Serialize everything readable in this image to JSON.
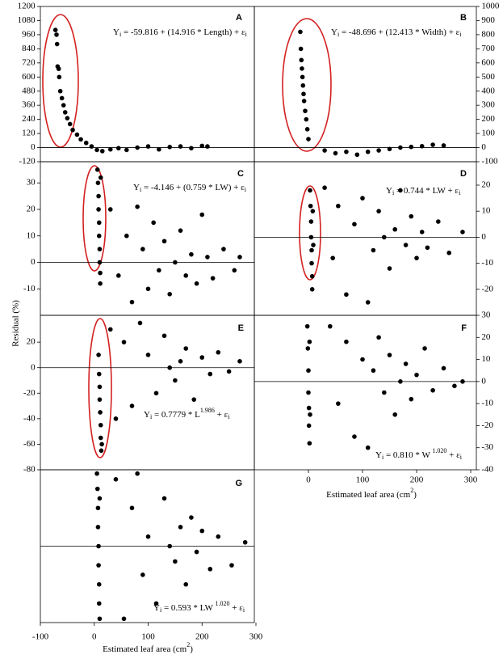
{
  "chart_data": [
    {
      "type": "scatter",
      "title": "A",
      "equation": [
        "Y",
        "i",
        " = -59.816 + (14.916 * Length) + ε",
        "i"
      ],
      "xlim": [
        -100,
        300
      ],
      "ylim": [
        -120,
        1200
      ],
      "yticks": [
        -120,
        0,
        120,
        240,
        360,
        480,
        600,
        720,
        840,
        960,
        1080,
        1200
      ],
      "x": [
        -72,
        -70,
        -69,
        -68,
        -66,
        -65,
        -63,
        -60,
        -57,
        -54,
        -50,
        -45,
        -40,
        -32,
        -25,
        -15,
        -5,
        5,
        15,
        30,
        45,
        60,
        80,
        100,
        120,
        140,
        160,
        180,
        200,
        210
      ],
      "values": [
        1000,
        960,
        880,
        690,
        670,
        600,
        480,
        420,
        360,
        300,
        250,
        200,
        150,
        110,
        70,
        40,
        10,
        -20,
        -30,
        -15,
        -5,
        -20,
        0,
        10,
        -15,
        5,
        10,
        -5,
        15,
        10
      ]
    },
    {
      "type": "scatter",
      "title": "B",
      "equation": [
        "Y",
        "i",
        " = -48.696 + (12.413 * Width) + ε",
        "i"
      ],
      "xlim": [
        -100,
        300
      ],
      "ylim": [
        -100,
        1000
      ],
      "yticks": [
        -100,
        0,
        100,
        200,
        300,
        400,
        500,
        600,
        700,
        800,
        900,
        1000
      ],
      "x": [
        -15,
        -14,
        -13,
        -12,
        -11,
        -10,
        -9,
        -8,
        -6,
        -4,
        -2,
        0,
        30,
        50,
        70,
        90,
        110,
        130,
        150,
        170,
        190,
        210,
        230,
        250
      ],
      "values": [
        820,
        700,
        620,
        560,
        500,
        440,
        380,
        330,
        260,
        200,
        130,
        60,
        -20,
        -40,
        -30,
        -50,
        -30,
        -20,
        -10,
        0,
        5,
        10,
        20,
        15
      ]
    },
    {
      "type": "scatter",
      "title": "C",
      "equation": [
        "Y",
        "i",
        " = -4.146 + (0.759 * LW) + ε",
        "i"
      ],
      "xlim": [
        -100,
        300
      ],
      "ylim": [
        -20,
        38
      ],
      "yticks": [
        -10,
        0,
        10,
        20,
        30
      ],
      "x": [
        6,
        7,
        8,
        8,
        9,
        9,
        10,
        10,
        11,
        11,
        12,
        30,
        45,
        60,
        70,
        80,
        90,
        100,
        110,
        120,
        130,
        140,
        150,
        160,
        170,
        180,
        190,
        200,
        210,
        220,
        240,
        260,
        270
      ],
      "values": [
        35,
        30,
        25,
        20,
        15,
        10,
        5,
        0,
        -4,
        -8,
        32,
        20,
        -5,
        10,
        -15,
        21,
        5,
        -10,
        15,
        -3,
        8,
        -12,
        0,
        12,
        -5,
        3,
        -8,
        18,
        2,
        -6,
        5,
        -3,
        2
      ]
    },
    {
      "type": "scatter",
      "title": "D",
      "equation": [
        "Y",
        "i",
        " = 0.744 * LW + ε",
        "i"
      ],
      "xlim": [
        -100,
        300
      ],
      "ylim": [
        -30,
        29
      ],
      "yticks": [
        -20,
        -10,
        0,
        10,
        20
      ],
      "x": [
        3,
        4,
        5,
        5,
        6,
        6,
        7,
        7,
        8,
        9,
        30,
        45,
        55,
        70,
        85,
        100,
        110,
        120,
        130,
        140,
        150,
        160,
        170,
        180,
        190,
        200,
        210,
        220,
        240,
        260,
        285
      ],
      "values": [
        18,
        12,
        6,
        0,
        -5,
        -10,
        -15,
        -20,
        10,
        -3,
        19,
        -8,
        12,
        -22,
        5,
        15,
        -25,
        -5,
        10,
        0,
        -12,
        3,
        18,
        -3,
        8,
        -8,
        2,
        -4,
        6,
        -6,
        2
      ]
    },
    {
      "type": "scatter",
      "title": "E",
      "equation": [
        "Y",
        "i",
        " = 0.7779 * L",
        "1.986",
        " + ε",
        "i"
      ],
      "ylabel": "Residual (%)",
      "xlim": [
        -100,
        300
      ],
      "ylim": [
        -80,
        41
      ],
      "yticks": [
        -80,
        -60,
        -40,
        -20,
        0,
        20
      ],
      "x": [
        8,
        9,
        10,
        10,
        11,
        12,
        12,
        13,
        14,
        30,
        40,
        55,
        70,
        85,
        100,
        115,
        130,
        140,
        150,
        160,
        170,
        185,
        200,
        215,
        230,
        250,
        270
      ],
      "values": [
        10,
        -5,
        -15,
        -25,
        -35,
        -45,
        -55,
        -65,
        -60,
        30,
        -40,
        20,
        -30,
        35,
        10,
        -20,
        25,
        0,
        -10,
        5,
        15,
        -25,
        8,
        -5,
        12,
        -3,
        5
      ]
    },
    {
      "type": "scatter",
      "title": "F",
      "equation": [
        "Y",
        "i",
        " = 0.810 * W ",
        "1.020",
        " + ε",
        "i"
      ],
      "xlabel": [
        "Estimated leaf area (cm",
        "2",
        ")"
      ],
      "xlim": [
        -100,
        300
      ],
      "xticks": [
        0,
        100,
        200,
        300
      ],
      "ylim": [
        -40,
        30
      ],
      "yticks": [
        -40,
        -30,
        -20,
        -10,
        0,
        10,
        20,
        30
      ],
      "x": [
        -2,
        -1,
        0,
        0,
        1,
        1,
        2,
        2,
        3,
        40,
        55,
        70,
        85,
        100,
        110,
        120,
        130,
        140,
        150,
        160,
        170,
        180,
        190,
        200,
        215,
        230,
        250,
        270,
        285
      ],
      "values": [
        25,
        15,
        5,
        -5,
        -12,
        -20,
        -28,
        18,
        -15,
        25,
        -10,
        18,
        -25,
        10,
        -30,
        5,
        20,
        -5,
        12,
        -15,
        0,
        8,
        -8,
        3,
        15,
        -4,
        6,
        -2,
        0
      ]
    },
    {
      "type": "scatter",
      "title": "G",
      "equation": [
        "Y",
        "i",
        " = 0.593 * LW ",
        "1.020",
        " + ε",
        "i"
      ],
      "xlabel": [
        "Estimated leaf area (cm",
        "2",
        ")"
      ],
      "xlim": [
        -100,
        300
      ],
      "xticks": [
        -100,
        0,
        100,
        200,
        300
      ],
      "ylim": [
        -40,
        40
      ],
      "x": [
        5,
        6,
        7,
        7,
        8,
        8,
        9,
        9,
        10,
        10,
        40,
        55,
        70,
        80,
        90,
        100,
        115,
        130,
        140,
        150,
        160,
        170,
        180,
        190,
        200,
        215,
        230,
        255,
        280
      ],
      "values": [
        38,
        30,
        20,
        10,
        0,
        -10,
        -20,
        -30,
        -38,
        25,
        35,
        -38,
        20,
        38,
        -15,
        5,
        -30,
        25,
        0,
        -8,
        10,
        -20,
        15,
        -3,
        8,
        -12,
        5,
        -10,
        2
      ]
    }
  ]
}
